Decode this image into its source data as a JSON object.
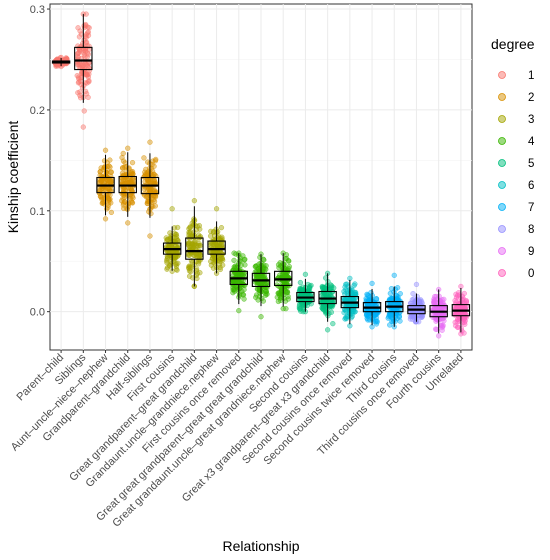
{
  "chart_data": {
    "type": "box",
    "xlabel": "Relationship",
    "ylabel": "Kinship coefficient",
    "ylim": [
      -0.038,
      0.305
    ],
    "yticks": [
      0.0,
      0.1,
      0.2,
      0.3
    ],
    "ytick_labels": [
      "0.0",
      "0.1",
      "0.2",
      "0.3"
    ],
    "grid": true,
    "legend": {
      "title": "degree",
      "position": "right",
      "entries": [
        {
          "label": "1",
          "color": "#F8766D"
        },
        {
          "label": "2",
          "color": "#D89000"
        },
        {
          "label": "3",
          "color": "#A3A500"
        },
        {
          "label": "4",
          "color": "#39B600"
        },
        {
          "label": "5",
          "color": "#00BF7D"
        },
        {
          "label": "6",
          "color": "#00BFC4"
        },
        {
          "label": "7",
          "color": "#00B0F6"
        },
        {
          "label": "8",
          "color": "#9590FF"
        },
        {
          "label": "9",
          "color": "#E76BF3"
        },
        {
          "label": "0",
          "color": "#FF62BC"
        }
      ]
    },
    "categories": [
      {
        "label": "Parent–child",
        "degree": "1",
        "q1": 0.2465,
        "median": 0.2475,
        "q3": 0.2485,
        "lo": 0.243,
        "hi": 0.252
      },
      {
        "label": "Siblings",
        "degree": "1",
        "q1": 0.24,
        "median": 0.249,
        "q3": 0.262,
        "lo": 0.183,
        "hi": 0.295
      },
      {
        "label": "Aunt–uncle–niece–nephew",
        "degree": "2",
        "q1": 0.118,
        "median": 0.125,
        "q3": 0.133,
        "lo": 0.092,
        "hi": 0.16
      },
      {
        "label": "Grandparent–grandchild",
        "degree": "2",
        "q1": 0.118,
        "median": 0.125,
        "q3": 0.134,
        "lo": 0.088,
        "hi": 0.162
      },
      {
        "label": "Half-siblings",
        "degree": "2",
        "q1": 0.117,
        "median": 0.125,
        "q3": 0.133,
        "lo": 0.075,
        "hi": 0.168
      },
      {
        "label": "First cousins",
        "degree": "3",
        "q1": 0.057,
        "median": 0.062,
        "q3": 0.068,
        "lo": 0.04,
        "hi": 0.102
      },
      {
        "label": "Great grandparent–great grandchild",
        "degree": "3",
        "q1": 0.052,
        "median": 0.06,
        "q3": 0.073,
        "lo": 0.025,
        "hi": 0.11
      },
      {
        "label": "Grandaunt.uncle–grandniece.nephew",
        "degree": "3",
        "q1": 0.057,
        "median": 0.062,
        "q3": 0.07,
        "lo": 0.038,
        "hi": 0.102
      },
      {
        "label": "First cousins once removed",
        "degree": "4",
        "q1": 0.027,
        "median": 0.033,
        "q3": 0.04,
        "lo": 0.001,
        "hi": 0.058
      },
      {
        "label": "Great great grandparent–great great grandchild",
        "degree": "4",
        "q1": 0.025,
        "median": 0.031,
        "q3": 0.038,
        "lo": -0.005,
        "hi": 0.057
      },
      {
        "label": "Great grandaunt.uncle–great grandniece.nephew",
        "degree": "4",
        "q1": 0.026,
        "median": 0.032,
        "q3": 0.04,
        "lo": 0.003,
        "hi": 0.058
      },
      {
        "label": "Second cousins",
        "degree": "5",
        "q1": 0.01,
        "median": 0.014,
        "q3": 0.019,
        "lo": 0.0,
        "hi": 0.037
      },
      {
        "label": "Great x3 grandparent–great x3 grandchild",
        "degree": "5",
        "q1": 0.008,
        "median": 0.013,
        "q3": 0.02,
        "lo": -0.018,
        "hi": 0.038
      },
      {
        "label": "Second cousins once removed",
        "degree": "6",
        "q1": 0.004,
        "median": 0.009,
        "q3": 0.015,
        "lo": -0.014,
        "hi": 0.033
      },
      {
        "label": "Second cousins twice removed",
        "degree": "7",
        "q1": 0.0,
        "median": 0.004,
        "q3": 0.009,
        "lo": -0.015,
        "hi": 0.028
      },
      {
        "label": "Third cousins",
        "degree": "7",
        "q1": 0.0,
        "median": 0.005,
        "q3": 0.01,
        "lo": -0.015,
        "hi": 0.036
      },
      {
        "label": "Third cousins once removed",
        "degree": "8",
        "q1": -0.002,
        "median": 0.002,
        "q3": 0.006,
        "lo": -0.01,
        "hi": 0.027
      },
      {
        "label": "Fourth cousins",
        "degree": "9",
        "q1": -0.005,
        "median": 0.0,
        "q3": 0.006,
        "lo": -0.024,
        "hi": 0.022
      },
      {
        "label": "Unrelated",
        "degree": "0",
        "q1": -0.004,
        "median": 0.001,
        "q3": 0.007,
        "lo": -0.022,
        "hi": 0.025
      }
    ]
  }
}
